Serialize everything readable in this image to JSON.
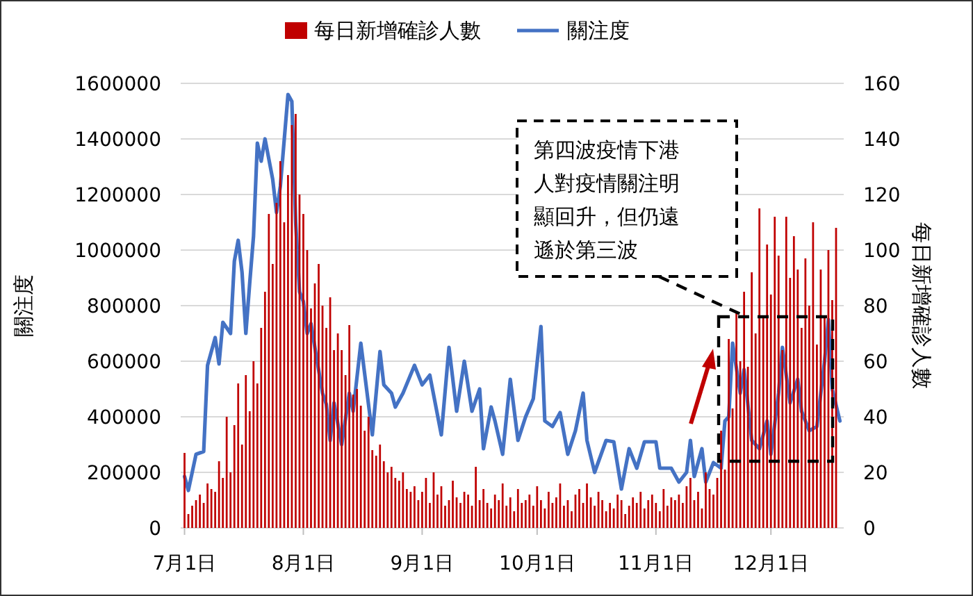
{
  "chart_data": {
    "type": "bar",
    "ylabel": "關注度",
    "y2label": "每日新增確診人數",
    "x": [
      "--07-01",
      "--07-02",
      "--07-03",
      "--07-04",
      "--07-05",
      "--07-06",
      "--07-07",
      "--07-08",
      "--07-09",
      "--07-10",
      "--07-11",
      "--07-12",
      "--07-13",
      "--07-14",
      "--07-15",
      "--07-16",
      "--07-17",
      "--07-18",
      "--07-19",
      "--07-20",
      "--07-21",
      "--07-22",
      "--07-23",
      "--07-24",
      "--07-25",
      "--07-26",
      "--07-27",
      "--07-28",
      "--07-29",
      "--07-30",
      "--07-31",
      "--08-01",
      "--08-02",
      "--08-03",
      "--08-04",
      "--08-05",
      "--08-06",
      "--08-07",
      "--08-08",
      "--08-09",
      "--08-10",
      "--08-11",
      "--08-12",
      "--08-13",
      "--08-14",
      "--08-15",
      "--08-16",
      "--08-17",
      "--08-18",
      "--08-19",
      "--08-20",
      "--08-21",
      "--08-22",
      "--08-23",
      "--08-24",
      "--08-25",
      "--08-26",
      "--08-27",
      "--08-28",
      "--08-29",
      "--08-30",
      "--08-31",
      "--09-01",
      "--09-02",
      "--09-03",
      "--09-04",
      "--09-05",
      "--09-06",
      "--09-07",
      "--09-08",
      "--09-09",
      "--09-10",
      "--09-11",
      "--09-12",
      "--09-13",
      "--09-14",
      "--09-15",
      "--09-16",
      "--09-17",
      "--09-18",
      "--09-19",
      "--09-20",
      "--09-21",
      "--09-22",
      "--09-23",
      "--09-24",
      "--09-25",
      "--09-26",
      "--09-27",
      "--09-28",
      "--09-29",
      "--09-30",
      "--10-01",
      "--10-02",
      "--10-03",
      "--10-04",
      "--10-05",
      "--10-06",
      "--10-07",
      "--10-08",
      "--10-09",
      "--10-10",
      "--10-11",
      "--10-12",
      "--10-13",
      "--10-14",
      "--10-15",
      "--10-16",
      "--10-17",
      "--10-18",
      "--10-19",
      "--10-20",
      "--10-21",
      "--10-22",
      "--10-23",
      "--10-24",
      "--10-25",
      "--10-26",
      "--10-27",
      "--10-28",
      "--10-29",
      "--10-30",
      "--10-31",
      "--11-01",
      "--11-02",
      "--11-03",
      "--11-04",
      "--11-05",
      "--11-06",
      "--11-07",
      "--11-08",
      "--11-09",
      "--11-10",
      "--11-11",
      "--11-12",
      "--11-13",
      "--11-14",
      "--11-15",
      "--11-16",
      "--11-17",
      "--11-18",
      "--11-19",
      "--11-20",
      "--11-21",
      "--11-22",
      "--11-23",
      "--11-24",
      "--11-25",
      "--11-26",
      "--11-27",
      "--11-28",
      "--11-29",
      "--11-30",
      "--12-01",
      "--12-02",
      "--12-03",
      "--12-04",
      "--12-05",
      "--12-06",
      "--12-07",
      "--12-08",
      "--12-09",
      "--12-10",
      "--12-11",
      "--12-12",
      "--12-13",
      "--12-14",
      "--12-15",
      "--12-16",
      "--12-17",
      "--12-18"
    ],
    "series": [
      {
        "name": "每日新增確診人數",
        "axis": "y2",
        "color": "#c00000",
        "values": [
          27,
          5,
          8,
          10,
          12,
          9,
          16,
          14,
          13,
          24,
          18,
          40,
          20,
          37,
          52,
          30,
          55,
          42,
          60,
          52,
          72,
          85,
          113,
          95,
          117,
          132,
          110,
          127,
          145,
          149,
          120,
          113,
          100,
          79,
          88,
          95,
          80,
          72,
          83,
          64,
          70,
          64,
          55,
          73,
          48,
          50,
          44,
          35,
          40,
          28,
          26,
          30,
          24,
          20,
          22,
          18,
          17,
          20,
          14,
          13,
          15,
          10,
          13,
          18,
          9,
          20,
          12,
          15,
          8,
          10,
          17,
          11,
          9,
          13,
          12,
          8,
          22,
          10,
          14,
          9,
          7,
          12,
          10,
          16,
          8,
          11,
          6,
          14,
          9,
          10,
          12,
          8,
          15,
          10,
          7,
          13,
          9,
          11,
          16,
          8,
          10,
          6,
          12,
          14,
          9,
          16,
          11,
          8,
          13,
          10,
          6,
          9,
          7,
          12,
          10,
          5,
          8,
          11,
          9,
          13,
          7,
          10,
          12,
          9,
          6,
          14,
          8,
          11,
          10,
          12,
          9,
          15,
          18,
          10,
          13,
          7,
          20,
          14,
          12,
          18,
          35,
          21,
          68,
          43,
          78,
          60,
          85,
          58,
          92,
          70,
          115,
          76,
          102,
          84,
          112,
          98,
          64,
          112,
          90,
          105,
          93,
          72,
          97,
          80,
          110,
          66,
          93,
          76,
          100,
          82,
          108
        ]
      },
      {
        "name": "關注度",
        "type": "line",
        "color": "#4472c4",
        "x": [
          "--07-01",
          "--07-02",
          "--07-04",
          "--07-06",
          "--07-07",
          "--07-09",
          "--07-10",
          "--07-11",
          "--07-13",
          "--07-14",
          "--07-15",
          "--07-16",
          "--07-17",
          "--07-18",
          "--07-19",
          "--07-20",
          "--07-21",
          "--07-22",
          "--07-24",
          "--07-25",
          "--07-26",
          "--07-28",
          "--07-29",
          "--07-30",
          "--07-31",
          "--08-01",
          "--08-02",
          "--08-03",
          "--08-04",
          "--08-06",
          "--08-07",
          "--08-08",
          "--08-09",
          "--08-11",
          "--08-13",
          "--08-14",
          "--08-16",
          "--08-19",
          "--08-21",
          "--08-22",
          "--08-24",
          "--08-25",
          "--08-27",
          "--08-30",
          "--09-01",
          "--09-03",
          "--09-06",
          "--09-08",
          "--09-10",
          "--09-12",
          "--09-14",
          "--09-16",
          "--09-17",
          "--09-19",
          "--09-20",
          "--09-22",
          "--09-24",
          "--09-26",
          "--09-28",
          "--09-30",
          "--10-02",
          "--10-03",
          "--10-05",
          "--10-07",
          "--10-09",
          "--10-11",
          "--10-13",
          "--10-14",
          "--10-16",
          "--10-19",
          "--10-21",
          "--10-23",
          "--10-25",
          "--10-27",
          "--10-29",
          "--11-01",
          "--11-02",
          "--11-05",
          "--11-07",
          "--11-09",
          "--11-10",
          "--11-11",
          "--11-13",
          "--11-14",
          "--11-16",
          "--11-18",
          "--11-19",
          "--11-20",
          "--11-21",
          "--11-23",
          "--11-24",
          "--11-26",
          "--11-28",
          "--11-30",
          "--12-01",
          "--12-03",
          "--12-04",
          "--12-06",
          "--12-08",
          "--12-09",
          "--12-11",
          "--12-13",
          "--12-15",
          "--12-16",
          "--12-17",
          "--12-19"
        ],
        "values": [
          185000,
          135000,
          265000,
          275000,
          585000,
          685000,
          590000,
          740000,
          700000,
          960000,
          1035000,
          920000,
          700000,
          880000,
          1050000,
          1385000,
          1320000,
          1400000,
          1255000,
          1135000,
          1230000,
          1560000,
          1535000,
          1100000,
          850000,
          815000,
          700000,
          735000,
          650000,
          485000,
          445000,
          315000,
          450000,
          300000,
          485000,
          420000,
          665000,
          335000,
          635000,
          515000,
          485000,
          435000,
          485000,
          585000,
          515000,
          550000,
          335000,
          650000,
          420000,
          600000,
          420000,
          500000,
          285000,
          435000,
          385000,
          265000,
          535000,
          315000,
          400000,
          465000,
          725000,
          385000,
          365000,
          415000,
          265000,
          350000,
          485000,
          315000,
          200000,
          315000,
          310000,
          140000,
          285000,
          215000,
          310000,
          310000,
          215000,
          215000,
          165000,
          200000,
          315000,
          185000,
          285000,
          165000,
          235000,
          215000,
          385000,
          400000,
          665000,
          485000,
          570000,
          315000,
          285000,
          385000,
          265000,
          485000,
          650000,
          450000,
          535000,
          420000,
          350000,
          365000,
          600000,
          750000,
          500000,
          385000
        ]
      }
    ],
    "xlim": [
      "--06-30",
      "--12-20"
    ],
    "xticks": [
      {
        "value": "--07-01",
        "label": "7月1日"
      },
      {
        "value": "--08-01",
        "label": "8月1日"
      },
      {
        "value": "--09-01",
        "label": "9月1日"
      },
      {
        "value": "--10-01",
        "label": "10月1日"
      },
      {
        "value": "--11-01",
        "label": "11月1日"
      },
      {
        "value": "--12-01",
        "label": "12月1日"
      }
    ],
    "ylim": [
      0,
      1600000
    ],
    "yticks": [
      0,
      200000,
      400000,
      600000,
      800000,
      1000000,
      1200000,
      1400000,
      1600000
    ],
    "y2lim": [
      0,
      160
    ],
    "y2ticks": [
      0,
      20,
      40,
      60,
      80,
      100,
      120,
      140,
      160
    ],
    "grid": "y",
    "legend": "top",
    "annotations": [
      {
        "text": "第四波疫情下港人對疫情關注明顯回升，但仍遠遜於第三波",
        "x": "--11-23",
        "y": 770000
      }
    ]
  }
}
